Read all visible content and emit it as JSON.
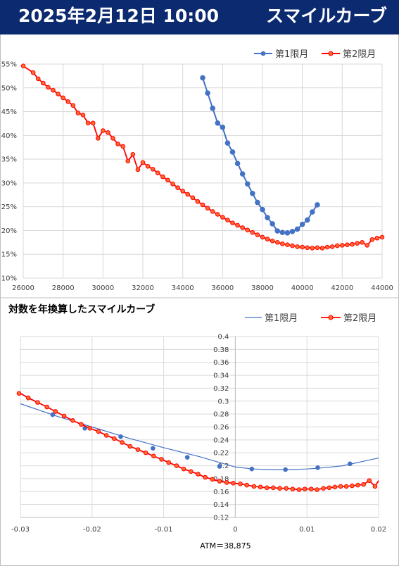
{
  "header": {
    "date": "2025年2月12日 10:00",
    "title": "スマイルカーブ",
    "background": "#0b2a6f"
  },
  "colors": {
    "series1": "#4472c4",
    "series2": "#ff0000",
    "series2_fill": "#ff6a33"
  },
  "chart_data": [
    {
      "type": "line",
      "title": "",
      "xlabel": "",
      "ylabel": "",
      "xlim": [
        26000,
        44000
      ],
      "ylim": [
        10,
        55
      ],
      "y_unit": "%",
      "grid": true,
      "legend": "top-right",
      "x_ticks": [
        "26000",
        "28000",
        "30000",
        "32000",
        "34000",
        "36000",
        "38000",
        "40000",
        "42000",
        "44000"
      ],
      "y_ticks": [
        "10%",
        "15%",
        "20%",
        "25%",
        "30%",
        "35%",
        "40%",
        "45%",
        "50%",
        "55%"
      ],
      "series": [
        {
          "name": "第1限月",
          "x": [
            35000,
            35250,
            35500,
            35750,
            36000,
            36250,
            36500,
            36750,
            37000,
            37250,
            37500,
            37750,
            38000,
            38250,
            38500,
            38750,
            39000,
            39250,
            39500,
            39750,
            40000,
            40250,
            40500,
            40750
          ],
          "y": [
            52.1,
            48.9,
            45.7,
            42.6,
            41.7,
            38.4,
            36.5,
            34.1,
            31.9,
            29.8,
            27.8,
            25.9,
            24.4,
            22.7,
            21.4,
            19.9,
            19.6,
            19.5,
            19.8,
            20.3,
            21.3,
            22.2,
            23.9,
            25.4
          ]
        },
        {
          "name": "第2限月",
          "x": [
            26000,
            26500,
            26750,
            27000,
            27250,
            27500,
            27750,
            28000,
            28250,
            28500,
            28750,
            29000,
            29250,
            29500,
            29750,
            30000,
            30250,
            30500,
            30750,
            31000,
            31250,
            31500,
            31750,
            32000,
            32250,
            32500,
            32750,
            33000,
            33250,
            33500,
            33750,
            34000,
            34250,
            34500,
            34750,
            35000,
            35250,
            35500,
            35750,
            36000,
            36250,
            36500,
            36750,
            37000,
            37250,
            37500,
            37750,
            38000,
            38250,
            38500,
            38750,
            39000,
            39250,
            39500,
            39750,
            40000,
            40250,
            40500,
            40750,
            41000,
            41250,
            41500,
            41750,
            42000,
            42250,
            42500,
            42750,
            43000,
            43250,
            43500,
            43750,
            44000
          ],
          "y": [
            54.6,
            53.2,
            51.9,
            51.0,
            50.1,
            49.5,
            48.7,
            47.9,
            47.1,
            46.3,
            44.7,
            44.3,
            42.6,
            42.6,
            39.4,
            41.0,
            40.6,
            39.4,
            38.2,
            37.7,
            34.6,
            36.0,
            32.8,
            34.3,
            33.5,
            32.9,
            32.1,
            31.3,
            30.6,
            29.8,
            29.0,
            28.3,
            27.6,
            26.9,
            26.1,
            25.4,
            24.7,
            24.0,
            23.4,
            22.8,
            22.2,
            21.6,
            21.1,
            20.6,
            20.1,
            19.6,
            19.1,
            18.6,
            18.2,
            17.8,
            17.5,
            17.2,
            17.0,
            16.8,
            16.6,
            16.5,
            16.4,
            16.3,
            16.4,
            16.3,
            16.5,
            16.6,
            16.8,
            16.9,
            17.0,
            17.1,
            17.3,
            17.5,
            16.9,
            18.1,
            18.4,
            18.6
          ]
        }
      ]
    },
    {
      "type": "line",
      "title": "対数を年換算したスマイルカーブ",
      "xlabel": "ATM＝38,875",
      "ylabel": "",
      "xlim": [
        -0.03,
        0.02
      ],
      "ylim": [
        0.12,
        0.4
      ],
      "grid": true,
      "legend": "top-right",
      "x_ticks": [
        "-0.03",
        "-0.02",
        "-0.01",
        "0",
        "0.01",
        "0.02"
      ],
      "y_ticks": [
        "0.12",
        "0.14",
        "0.16",
        "0.18",
        "0.2",
        "0.22",
        "0.24",
        "0.26",
        "0.28",
        "0.3",
        "0.32",
        "0.34",
        "0.36",
        "0.38",
        "0.4"
      ],
      "series": [
        {
          "name": "第1限月",
          "line_x": [
            -0.03,
            -0.025,
            -0.02,
            -0.015,
            -0.01,
            -0.005,
            0.0,
            0.0025,
            0.005,
            0.0075,
            0.01,
            0.0125,
            0.015,
            0.0175,
            0.02
          ],
          "line_y": [
            0.296,
            0.277,
            0.26,
            0.243,
            0.228,
            0.214,
            0.198,
            0.195,
            0.194,
            0.194,
            0.195,
            0.197,
            0.2,
            0.206,
            0.212
          ],
          "x": [
            -0.0255,
            -0.021,
            -0.016,
            -0.0115,
            -0.0067,
            -0.0022,
            0.0023,
            0.007,
            0.0115,
            0.016
          ],
          "y": [
            0.279,
            0.258,
            0.245,
            0.227,
            0.213,
            0.199,
            0.195,
            0.194,
            0.197,
            0.203
          ]
        },
        {
          "name": "第2限月",
          "x": [
            -0.0302,
            -0.0289,
            -0.0276,
            -0.0263,
            -0.0251,
            -0.0239,
            -0.0227,
            -0.0215,
            -0.0203,
            -0.0191,
            -0.018,
            -0.0169,
            -0.0158,
            -0.0147,
            -0.0136,
            -0.0125,
            -0.0114,
            -0.0103,
            -0.0093,
            -0.0082,
            -0.0072,
            -0.0062,
            -0.0052,
            -0.0042,
            -0.0032,
            -0.0022,
            -0.0012,
            -0.0003,
            0.0007,
            0.0016,
            0.0026,
            0.0035,
            0.0044,
            0.0053,
            0.0062,
            0.0071,
            0.008,
            0.0089,
            0.0097,
            0.0106,
            0.0114,
            0.0123,
            0.0131,
            0.0139,
            0.0147,
            0.0155,
            0.0163,
            0.0171,
            0.0179,
            0.0187,
            0.0195,
            0.0202
          ],
          "y": [
            0.312,
            0.305,
            0.298,
            0.291,
            0.284,
            0.277,
            0.27,
            0.264,
            0.258,
            0.253,
            0.247,
            0.242,
            0.236,
            0.23,
            0.225,
            0.22,
            0.215,
            0.21,
            0.205,
            0.2,
            0.195,
            0.191,
            0.187,
            0.182,
            0.179,
            0.176,
            0.174,
            0.173,
            0.172,
            0.17,
            0.168,
            0.167,
            0.166,
            0.166,
            0.165,
            0.165,
            0.164,
            0.163,
            0.164,
            0.164,
            0.163,
            0.165,
            0.166,
            0.167,
            0.168,
            0.168,
            0.169,
            0.17,
            0.171,
            0.177,
            0.168,
            0.177
          ]
        }
      ]
    }
  ]
}
